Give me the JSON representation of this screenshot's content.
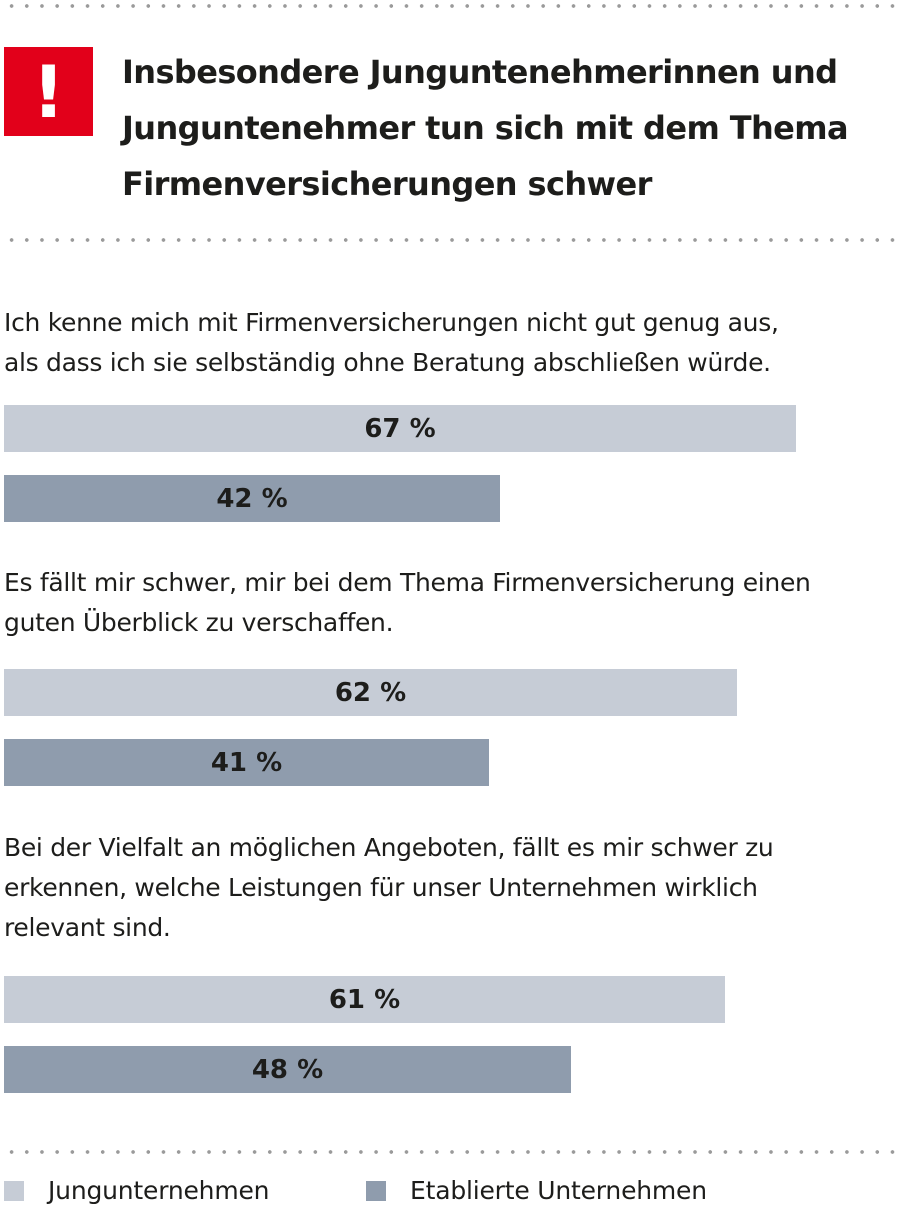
{
  "header": {
    "icon_symbol": "!",
    "title_lines": [
      "Insbesondere Junguntenehmerinnen und",
      "Junguntenehmer tun sich mit dem Thema",
      "Firmenversicherungen schwer"
    ]
  },
  "colors": {
    "accent_red": "#e2001a",
    "series_young": "#c6ccd6",
    "series_established": "#8f9cad"
  },
  "chart_data": {
    "type": "bar",
    "orientation": "horizontal",
    "unit": "%",
    "categories": [
      "Ich kenne mich mit Firmenversicherungen nicht gut genug aus, als dass ich sie selbständig ohne Beratung abschließen würde.",
      "Es fällt mir schwer, mir bei dem Thema Firmenversicherung einen guten Überblick zu verschaffen.",
      "Bei der Vielfalt an möglichen Angeboten, fällt es mir schwer zu erkennen, welche Leistungen für unser Unternehmen wirklich relevant sind."
    ],
    "category_lines": [
      [
        "Ich kenne mich mit Firmenversicherungen nicht gut genug aus,",
        "als dass ich sie selbständig ohne Beratung abschließen würde."
      ],
      [
        "Es fällt mir schwer, mir bei dem Thema Firmenversicherung einen",
        "guten Überblick zu verschaffen."
      ],
      [
        "Bei der Vielfalt an möglichen Angeboten, fällt es mir schwer zu",
        "erkennen, welche Leistungen für unser Unternehmen wirklich",
        "relevant sind."
      ]
    ],
    "series": [
      {
        "name": "Jungunternehmen",
        "values": [
          67,
          62,
          61
        ],
        "labels": [
          "67 %",
          "62 %",
          "61 %"
        ]
      },
      {
        "name": "Etablierte Unternehmen",
        "values": [
          42,
          41,
          48
        ],
        "labels": [
          "42 %",
          "41 %",
          "48 %"
        ]
      }
    ],
    "xlim": [
      0,
      100
    ],
    "legend": "bottom-left",
    "grid": false
  }
}
